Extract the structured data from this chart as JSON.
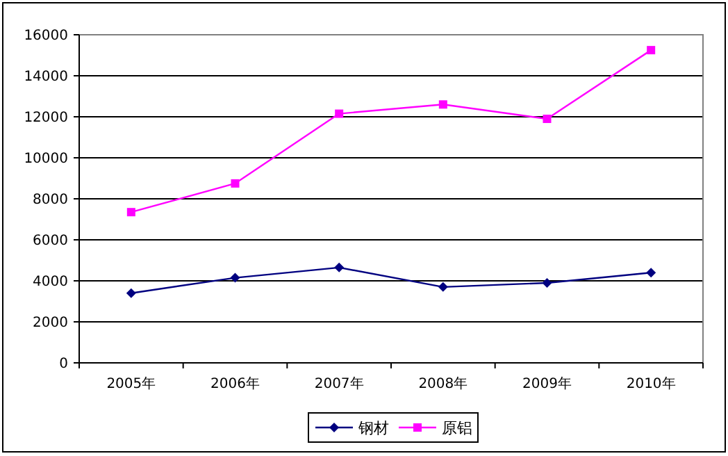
{
  "chart_data": {
    "type": "line",
    "categories": [
      "2005年",
      "2006年",
      "2007年",
      "2008年",
      "2009年",
      "2010年"
    ],
    "series": [
      {
        "name": "钢材",
        "color": "#000080",
        "values": [
          3400,
          4150,
          4650,
          3700,
          3900,
          4400
        ],
        "marker": "diamond"
      },
      {
        "name": "原铝",
        "color": "#ff00ff",
        "values": [
          7350,
          8750,
          12150,
          12600,
          11900,
          15250
        ],
        "marker": "square"
      }
    ],
    "ylim": [
      0,
      16000
    ],
    "yticks": [
      0,
      2000,
      4000,
      6000,
      8000,
      10000,
      12000,
      14000,
      16000
    ],
    "grid": "y",
    "legend": "bottom"
  }
}
